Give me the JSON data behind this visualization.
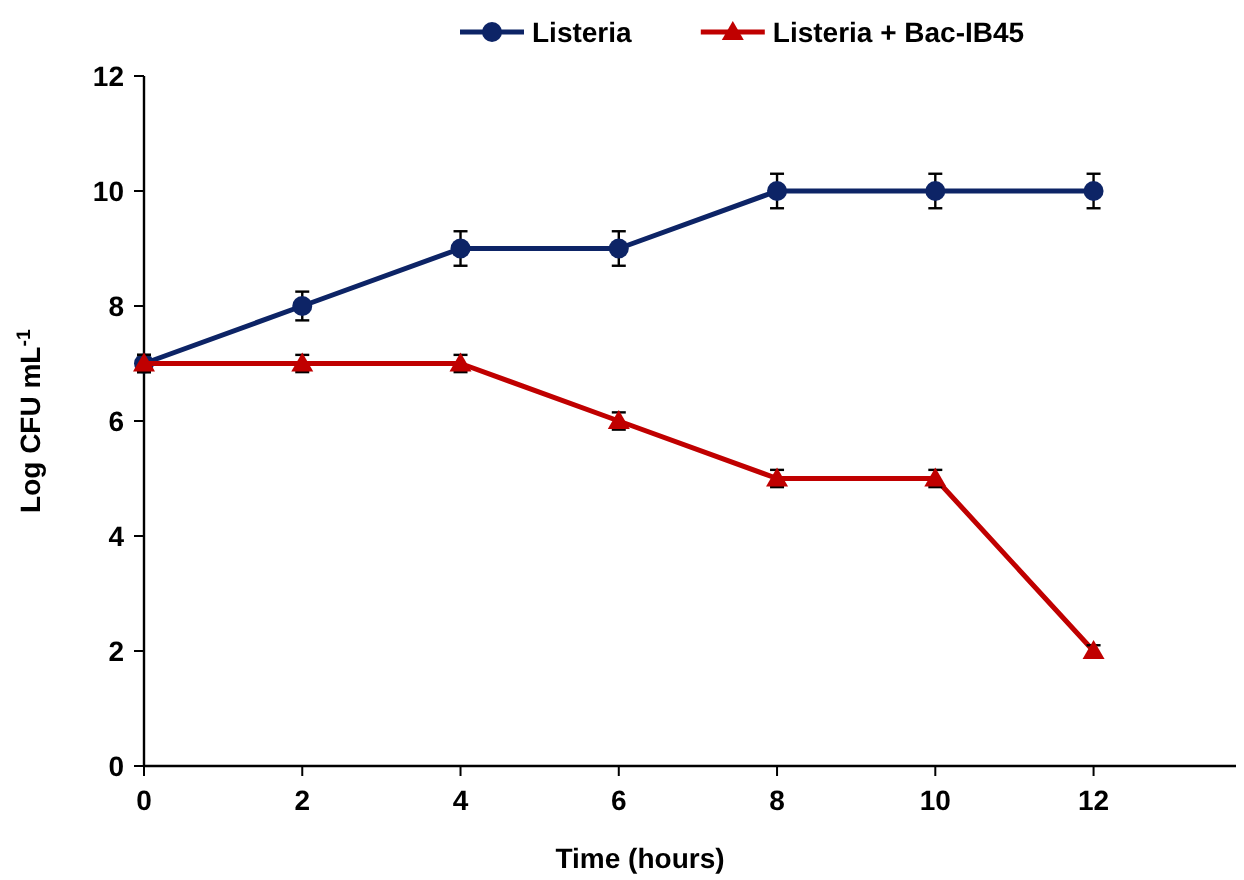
{
  "chart_data": {
    "type": "line",
    "xlabel": "Time (hours)",
    "ylabel": "Log CFU mL$^{-1}$",
    "x": [
      0,
      2,
      4,
      6,
      8,
      10,
      12
    ],
    "series": [
      {
        "name": "Listeria",
        "color": "#0d2466",
        "values": [
          7,
          8,
          9,
          9,
          10,
          10,
          10
        ],
        "errors": [
          0.15,
          0.25,
          0.3,
          0.3,
          0.3,
          0.3,
          0.3
        ],
        "marker": "circle"
      },
      {
        "name": "Listeria + Bac-IB45",
        "color": "#c00000",
        "values": [
          7,
          7,
          7,
          6,
          5,
          5,
          2
        ],
        "errors": [
          0.15,
          0.15,
          0.15,
          0.15,
          0.15,
          0.15,
          0.1
        ],
        "marker": "triangle"
      }
    ],
    "xlim": [
      0,
      13.8
    ],
    "xticks": [
      0,
      2,
      4,
      6,
      8,
      10,
      12
    ],
    "ylim": [
      0,
      12
    ],
    "yticks": [
      0,
      2,
      4,
      6,
      8,
      10,
      12
    ],
    "grid": false,
    "legend": "top",
    "line_style": "solid"
  }
}
